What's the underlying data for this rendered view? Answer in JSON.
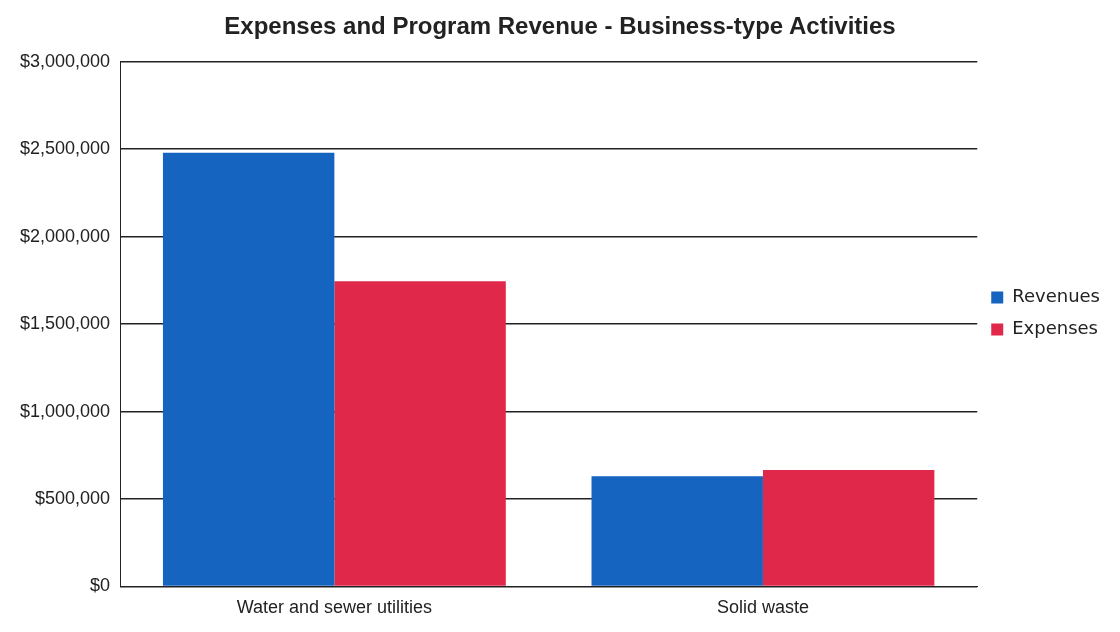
{
  "chart_data": {
    "type": "bar",
    "title": "Expenses and Program Revenue - Business-type Activities",
    "categories": [
      "Water and sewer utilities",
      "Solid waste"
    ],
    "series": [
      {
        "name": "Revenues",
        "color": "#1565c0",
        "values": [
          2480000,
          630000
        ]
      },
      {
        "name": "Expenses",
        "color": "#e0294a",
        "values": [
          1745000,
          665000
        ]
      }
    ],
    "ylim": [
      0,
      3000000
    ],
    "yticks": [
      {
        "value": 0,
        "label": "$0"
      },
      {
        "value": 500000,
        "label": "$500,000"
      },
      {
        "value": 1000000,
        "label": "$1,000,000"
      },
      {
        "value": 1500000,
        "label": "$1,500,000"
      },
      {
        "value": 2000000,
        "label": "$2,000,000"
      },
      {
        "value": 2500000,
        "label": "$2,500,000"
      },
      {
        "value": 3000000,
        "label": "$3,000,000"
      }
    ],
    "grid": "y",
    "legend": "right"
  }
}
